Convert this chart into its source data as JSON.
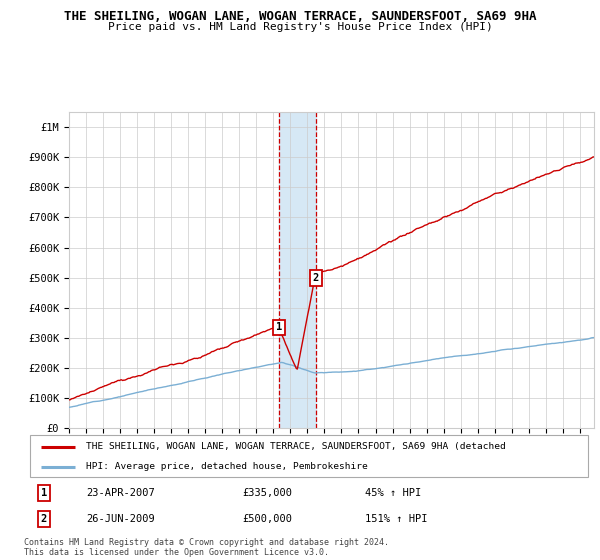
{
  "title": "THE SHEILING, WOGAN LANE, WOGAN TERRACE, SAUNDERSFOOT, SA69 9HA",
  "subtitle": "Price paid vs. HM Land Registry's House Price Index (HPI)",
  "legend_property": "THE SHEILING, WOGAN LANE, WOGAN TERRACE, SAUNDERSFOOT, SA69 9HA (detached",
  "legend_hpi": "HPI: Average price, detached house, Pembrokeshire",
  "transaction1_date": "23-APR-2007",
  "transaction1_price": 335000,
  "transaction1_label": "£335,000",
  "transaction1_pct": "45% ↑ HPI",
  "transaction2_date": "26-JUN-2009",
  "transaction2_price": 500000,
  "transaction2_label": "£500,000",
  "transaction2_pct": "151% ↑ HPI",
  "ylim": [
    0,
    1050000
  ],
  "xlim_start": 1995.0,
  "xlim_end": 2025.83,
  "property_line_color": "#cc0000",
  "hpi_line_color": "#7bafd4",
  "shade_color": "#d6e8f5",
  "transaction1_x": 2007.31,
  "transaction2_x": 2009.48,
  "footer": "Contains HM Land Registry data © Crown copyright and database right 2024.\nThis data is licensed under the Open Government Licence v3.0.",
  "yticks": [
    0,
    100000,
    200000,
    300000,
    400000,
    500000,
    600000,
    700000,
    800000,
    900000,
    1000000
  ],
  "ytick_labels": [
    "£0",
    "£100K",
    "£200K",
    "£300K",
    "£400K",
    "£500K",
    "£600K",
    "£700K",
    "£800K",
    "£900K",
    "£1M"
  ],
  "grid_color": "#cccccc",
  "background_color": "#ffffff"
}
